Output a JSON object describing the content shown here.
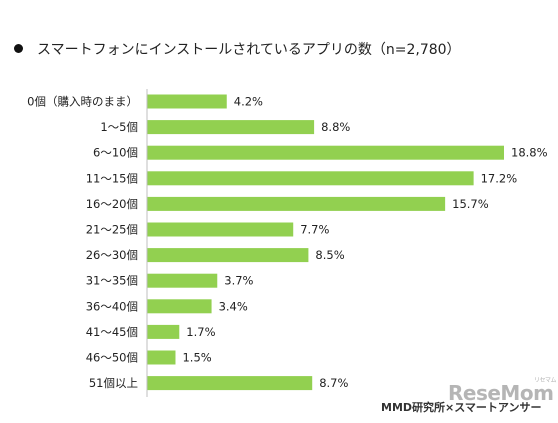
{
  "chart_data": {
    "type": "bar",
    "orientation": "horizontal",
    "title": "スマートフォンにインストールされているアプリの数（n=2,780）",
    "categories": [
      "0個（購入時のまま）",
      "1～5個",
      "6～10個",
      "11～15個",
      "16～20個",
      "21～25個",
      "26～30個",
      "31～35個",
      "36～40個",
      "41～45個",
      "46～50個",
      "51個以上"
    ],
    "values": [
      4.2,
      8.8,
      18.8,
      17.2,
      15.7,
      7.7,
      8.5,
      3.7,
      3.4,
      1.7,
      1.5,
      8.7
    ],
    "value_labels": [
      "4.2%",
      "8.8%",
      "18.8%",
      "17.2%",
      "15.7%",
      "7.7%",
      "8.5%",
      "3.7%",
      "3.4%",
      "1.7%",
      "1.5%",
      "8.7%"
    ],
    "xlim": [
      0,
      18.8
    ],
    "grid": false,
    "bar_color": "#92d050"
  },
  "source": "MMD研究所×スマートアンサー",
  "watermark": {
    "text": "ReseMom",
    "ruby": "リセマム"
  },
  "colors": {
    "bar": "#92d050",
    "axis": "#bfbfbf"
  }
}
